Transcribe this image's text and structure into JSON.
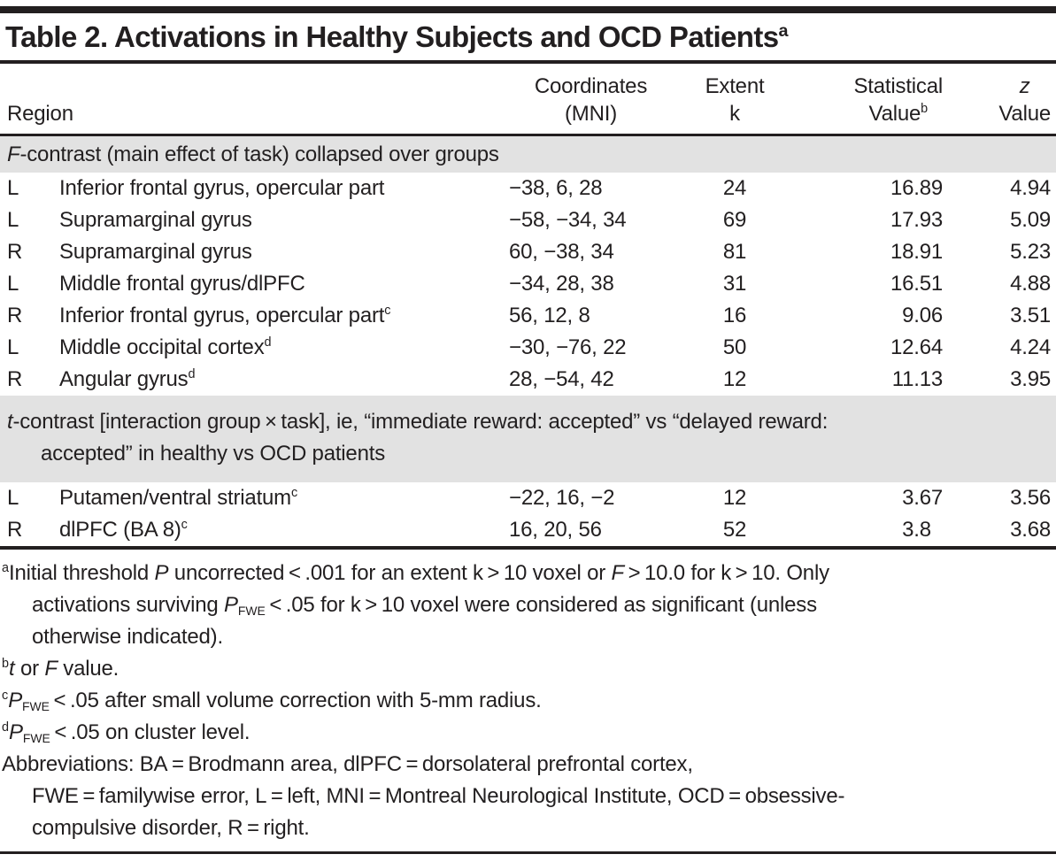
{
  "title": {
    "text": "Table 2. Activations in Healthy Subjects and OCD Patients",
    "sup": "a"
  },
  "header": {
    "region": "Region",
    "coordinates": {
      "line1": "Coordinates",
      "line2": "(MNI)"
    },
    "extent": {
      "line1": "Extent",
      "line2": "k"
    },
    "statistical": {
      "line1": "Statistical",
      "line2": "Value",
      "sup": "b"
    },
    "z": {
      "line1": "z",
      "line2": "Value"
    }
  },
  "colors": {
    "rule": "#231f20",
    "section_band": "#e2e2e2",
    "text": "#221f20"
  },
  "sections": [
    {
      "header": [
        {
          "t": "F",
          "i": true
        },
        {
          "t": "-contrast (main effect of task) collapsed over groups"
        }
      ],
      "rows": [
        {
          "side": "L",
          "region": "Inferior frontal gyrus, opercular part",
          "sup": "",
          "coords": "−38, 6, 28",
          "k": "24",
          "stat": "16.89",
          "z": "4.94"
        },
        {
          "side": "L",
          "region": "Supramarginal gyrus",
          "sup": "",
          "coords": "−58, −34, 34",
          "k": "69",
          "stat": "17.93",
          "z": "5.09"
        },
        {
          "side": "R",
          "region": "Supramarginal gyrus",
          "sup": "",
          "coords": "60, −38, 34",
          "k": "81",
          "stat": "18.91",
          "z": "5.23"
        },
        {
          "side": "L",
          "region": "Middle frontal gyrus/dlPFC",
          "sup": "",
          "coords": "−34, 28, 38",
          "k": "31",
          "stat": "16.51",
          "z": "4.88"
        },
        {
          "side": "R",
          "region": "Inferior frontal gyrus, opercular part",
          "sup": "c",
          "coords": "56, 12, 8",
          "k": "16",
          "stat": "9.06",
          "z": "3.51"
        },
        {
          "side": "L",
          "region": "Middle occipital cortex",
          "sup": "d",
          "coords": "−30, −76, 22",
          "k": "50",
          "stat": "12.64",
          "z": "4.24"
        },
        {
          "side": "R",
          "region": "Angular gyrus",
          "sup": "d",
          "coords": "28, −54, 42",
          "k": "12",
          "stat": "11.13",
          "z": "3.95"
        }
      ]
    },
    {
      "header": [
        {
          "t": "t",
          "i": true
        },
        {
          "t": "-contrast [interaction group × task], ie, “immediate reward: accepted” vs “delayed reward:"
        },
        {
          "br": true
        },
        {
          "t": "accepted” in healthy vs OCD patients"
        }
      ],
      "rows": [
        {
          "side": "L",
          "region": "Putamen/ventral striatum",
          "sup": "c",
          "coords": "−22, 16, −2",
          "k": "12",
          "stat": "3.67",
          "z": "3.56"
        },
        {
          "side": "R",
          "region": "dlPFC (BA 8)",
          "sup": "c",
          "coords": "16, 20, 56",
          "k": "52",
          "stat": "3.8",
          "z": "3.68"
        }
      ]
    }
  ],
  "footnotes": [
    {
      "marker": "a",
      "segments": [
        {
          "t": "Initial threshold "
        },
        {
          "t": "P",
          "i": true
        },
        {
          "t": " uncorrected < .001 for an extent k > 10 voxel or "
        },
        {
          "t": "F",
          "i": true
        },
        {
          "t": " > 10.0 for k > 10. Only"
        },
        {
          "br": true
        },
        {
          "t": "activations surviving "
        },
        {
          "t": "P",
          "i": true
        },
        {
          "t": "FWE",
          "sub": true
        },
        {
          "t": " < .05 for k > 10 voxel were considered as significant (unless"
        },
        {
          "br": true
        },
        {
          "t": "otherwise indicated)."
        }
      ]
    },
    {
      "marker": "b",
      "segments": [
        {
          "t": "t",
          "i": true
        },
        {
          "t": " or "
        },
        {
          "t": "F",
          "i": true
        },
        {
          "t": " value."
        }
      ]
    },
    {
      "marker": "c",
      "segments": [
        {
          "t": "P",
          "i": true
        },
        {
          "t": "FWE",
          "sub": true
        },
        {
          "t": " < .05 after small volume correction with 5-mm radius."
        }
      ]
    },
    {
      "marker": "d",
      "segments": [
        {
          "t": "P",
          "i": true
        },
        {
          "t": "FWE",
          "sub": true
        },
        {
          "t": " < .05 on cluster level."
        }
      ]
    },
    {
      "marker": "",
      "segments": [
        {
          "t": "Abbreviations: BA = Brodmann area, dlPFC = dorsolateral prefrontal cortex,"
        },
        {
          "br": true
        },
        {
          "t": "FWE = familywise error, L = left, MNI = Montreal Neurological Institute, OCD = obsessive-"
        },
        {
          "br": true
        },
        {
          "t": "compulsive disorder, R = right."
        }
      ]
    }
  ]
}
